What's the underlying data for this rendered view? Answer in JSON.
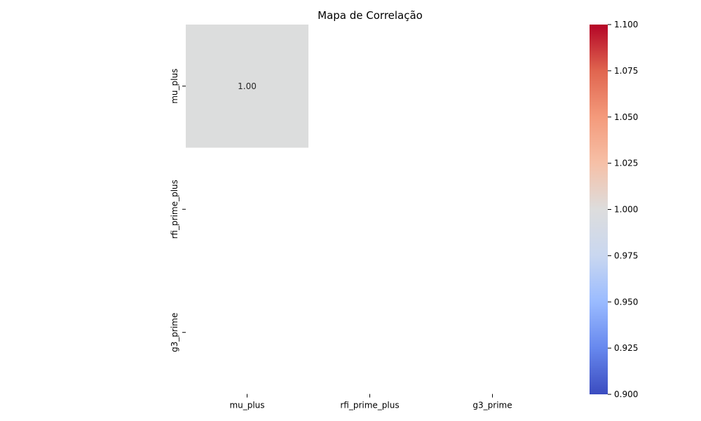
{
  "chart_data": {
    "type": "heatmap",
    "title": "Mapa de Correlação",
    "xlabel": "",
    "ylabel": "",
    "x_categories": [
      "mu_plus",
      "rfi_prime_plus",
      "g3_prime"
    ],
    "y_categories": [
      "mu_plus",
      "rfi_prime_plus",
      "g3_prime"
    ],
    "cells": [
      {
        "row": 0,
        "col": 0,
        "value": 1.0,
        "label": "1.00"
      }
    ],
    "colormap": "coolwarm",
    "cell_color": "#dcdddd",
    "colorbar": {
      "range": [
        0.9,
        1.1
      ],
      "ticks": [
        "0.900",
        "0.925",
        "0.950",
        "0.975",
        "1.000",
        "1.025",
        "1.050",
        "1.075",
        "1.100"
      ],
      "colors": [
        "#3b4cc0",
        "#6788ee",
        "#9abbff",
        "#c9d7f0",
        "#dddddd",
        "#f6c0a7",
        "#f49a7b",
        "#e0654f",
        "#b40426"
      ]
    }
  }
}
